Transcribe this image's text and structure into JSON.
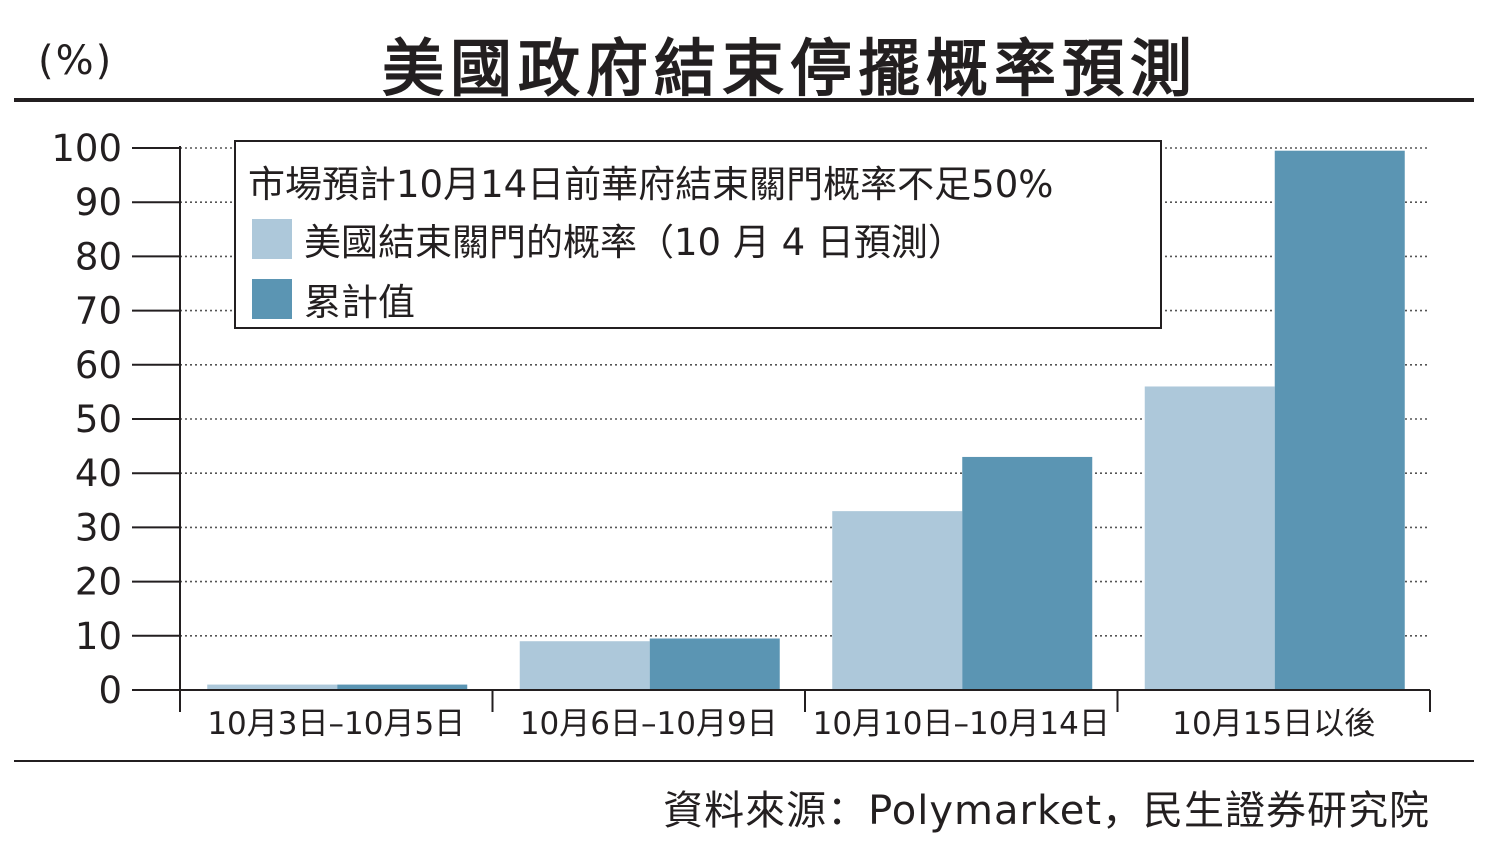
{
  "header": {
    "unit": "(%)",
    "title": "美國政府結束停擺概率預測"
  },
  "footer": {
    "source": "資料來源：Polymarket，民生證券研究院"
  },
  "colors": {
    "series_light": "#adc8da",
    "series_dark": "#5b95b3",
    "ink": "#231f20"
  },
  "chart_data": {
    "type": "bar",
    "title": "美國政府結束停擺概率預測",
    "ylabel": "(%)",
    "xlabel": "",
    "ylim": [
      0,
      100
    ],
    "yticks": [
      0,
      10,
      20,
      30,
      40,
      50,
      60,
      70,
      80,
      90,
      100
    ],
    "grid": true,
    "legend_position": "top-left",
    "annotation": "市場預計10月14日前華府結束關門概率不足50%",
    "categories": [
      "10月3日–10月5日",
      "10月6日–10月9日",
      "10月10日–10月14日",
      "10月15日以後"
    ],
    "series": [
      {
        "name": "美國結束關門的概率（10 月 4 日預測）",
        "color": "#adc8da",
        "values": [
          1,
          9,
          33,
          56
        ]
      },
      {
        "name": "累計值",
        "color": "#5b95b3",
        "values": [
          1,
          9.5,
          43,
          99.5
        ]
      }
    ]
  }
}
